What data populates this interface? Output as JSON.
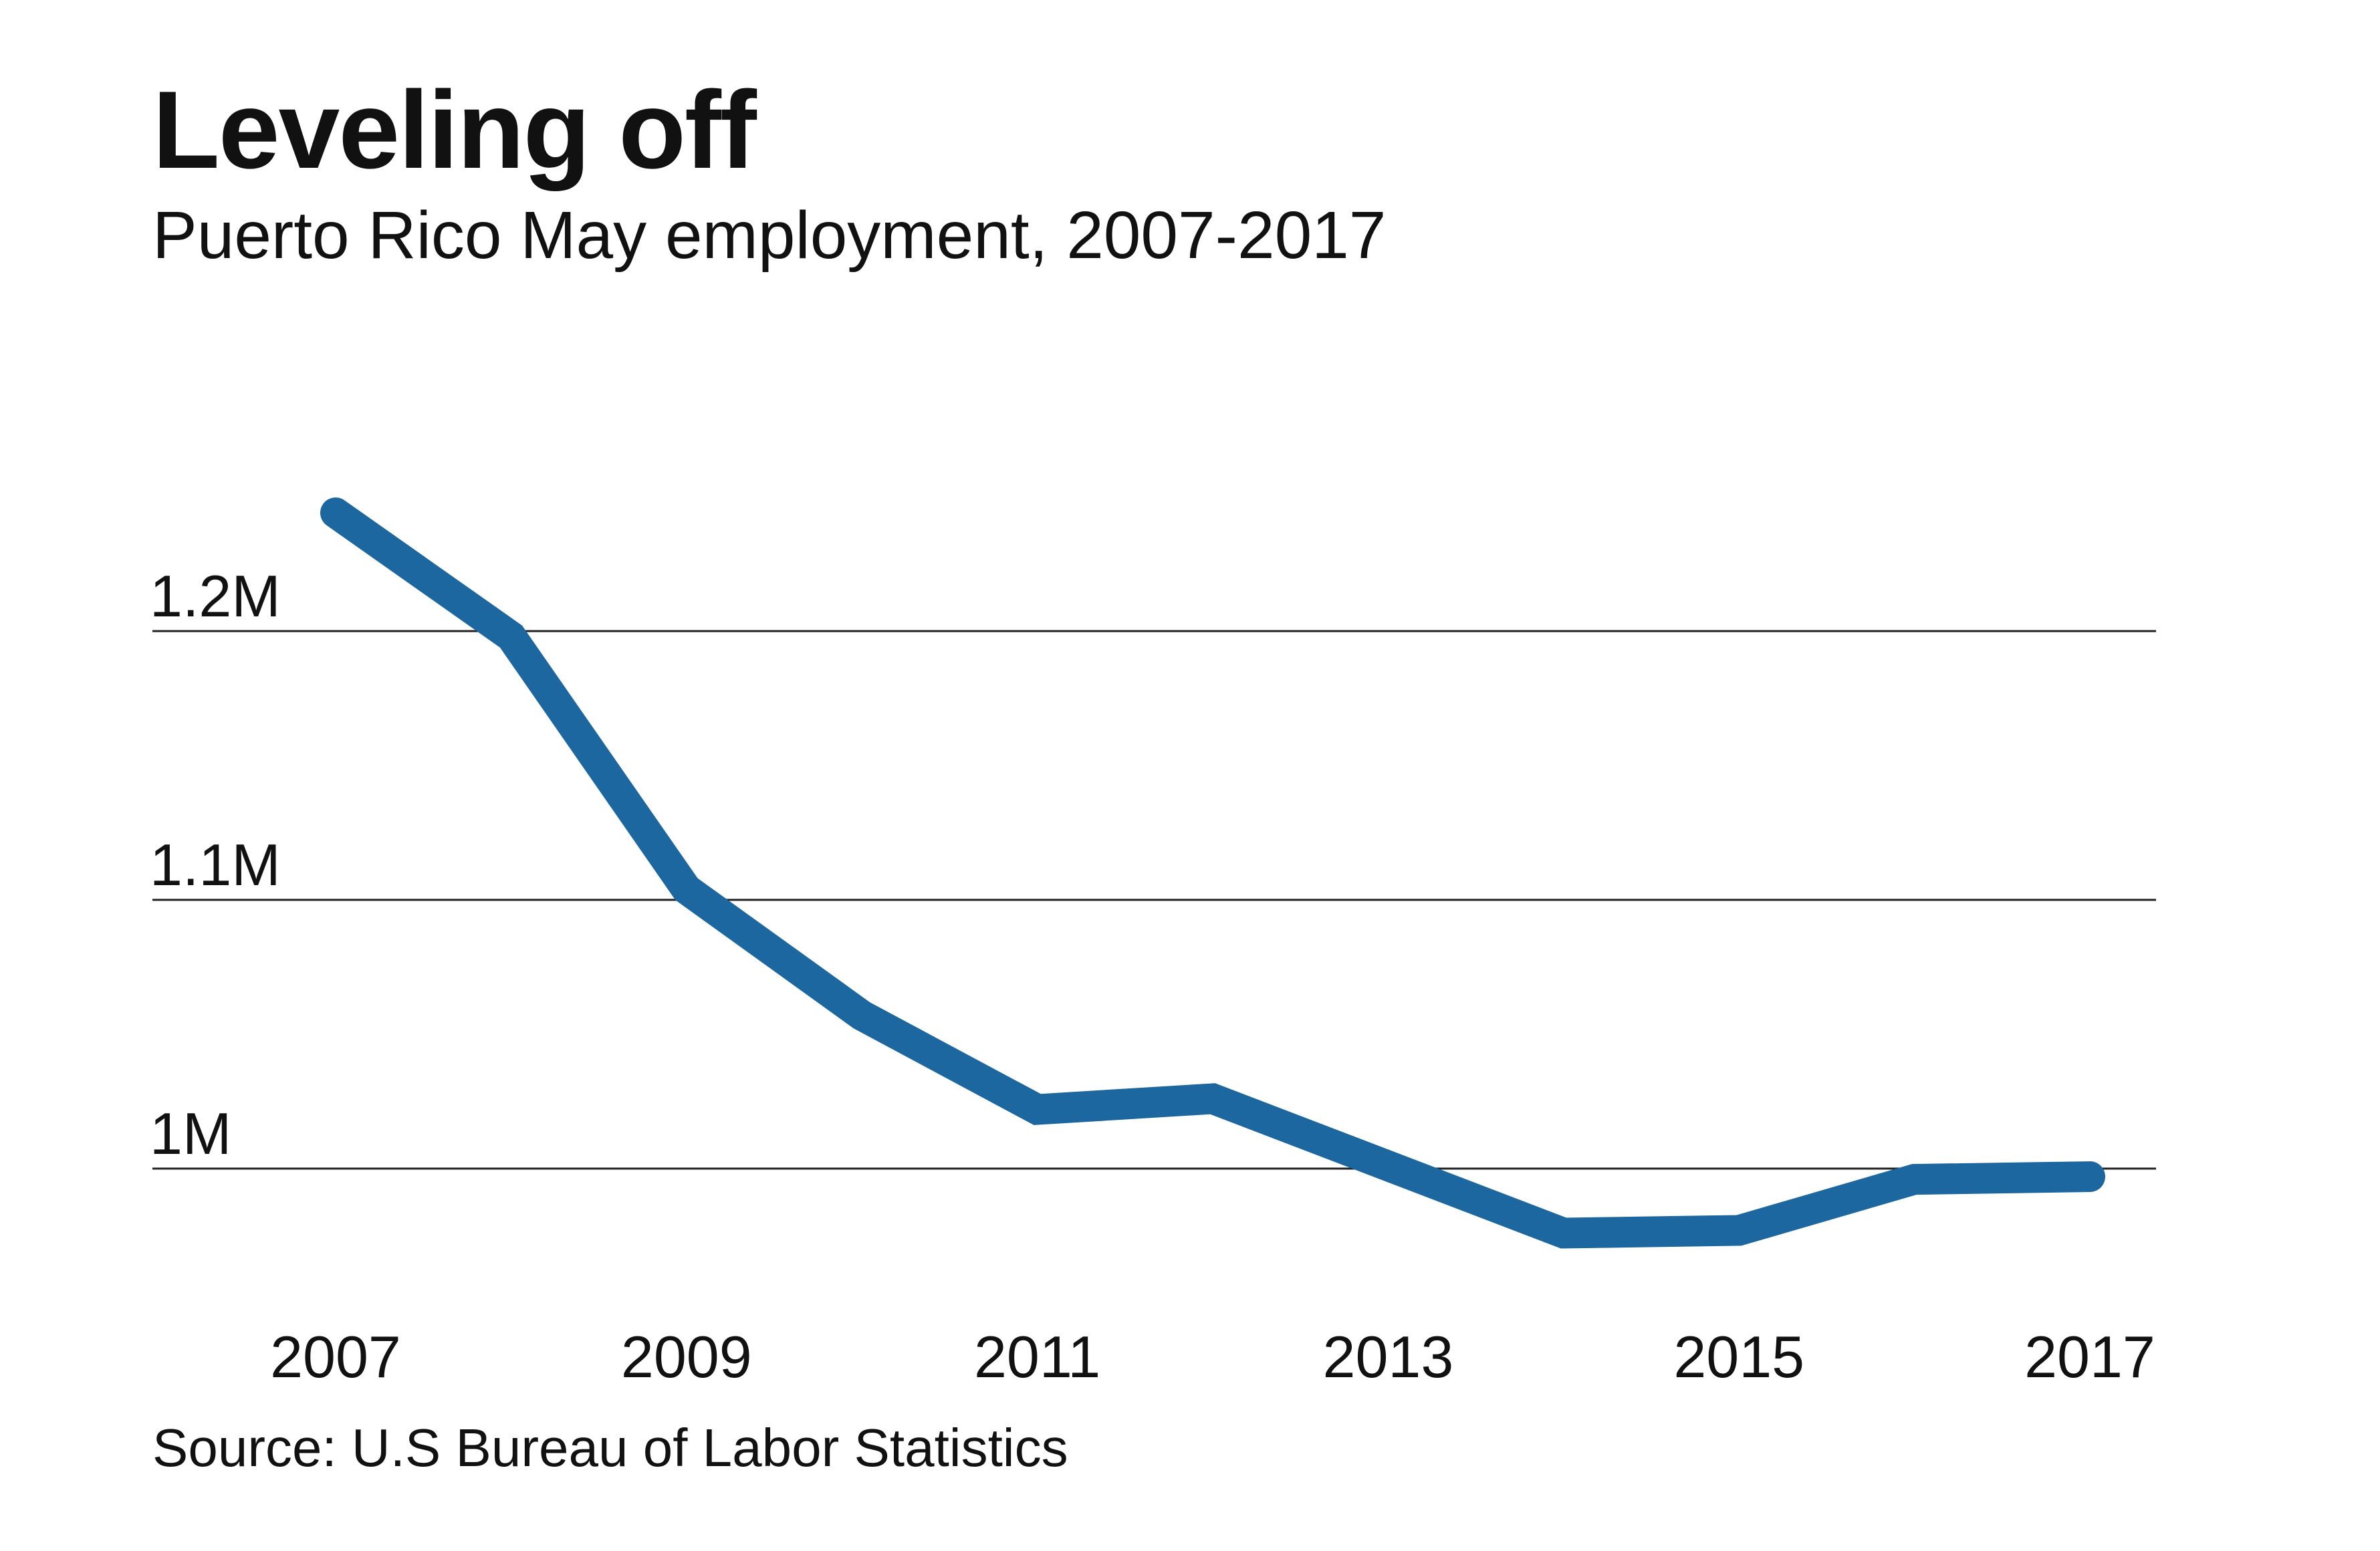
{
  "chart_data": {
    "type": "line",
    "title": "Leveling off",
    "subtitle": "Puerto Rico May employment, 2007-2017",
    "source": "Source: U.S Bureau of Labor Statistics",
    "x": [
      2007,
      2008,
      2009,
      2010,
      2011,
      2012,
      2013,
      2014,
      2015,
      2016,
      2017
    ],
    "values": [
      1244000,
      1198000,
      1104000,
      1057000,
      1022000,
      1026000,
      1001000,
      976000,
      977000,
      996000,
      997000
    ],
    "xticks": [
      2007,
      2009,
      2011,
      2013,
      2015,
      2017
    ],
    "xtick_labels": [
      "2007",
      "2009",
      "2011",
      "2013",
      "2015",
      "2017"
    ],
    "yticks": [
      1000000,
      1100000,
      1200000
    ],
    "ytick_labels": [
      "1M",
      "1.1M",
      "1.2M"
    ],
    "xlim": [
      2007,
      2017
    ],
    "ylim": [
      960000,
      1260000
    ],
    "grid": "horizontal",
    "line_color": "#1c679f",
    "grid_color": "#222222"
  }
}
